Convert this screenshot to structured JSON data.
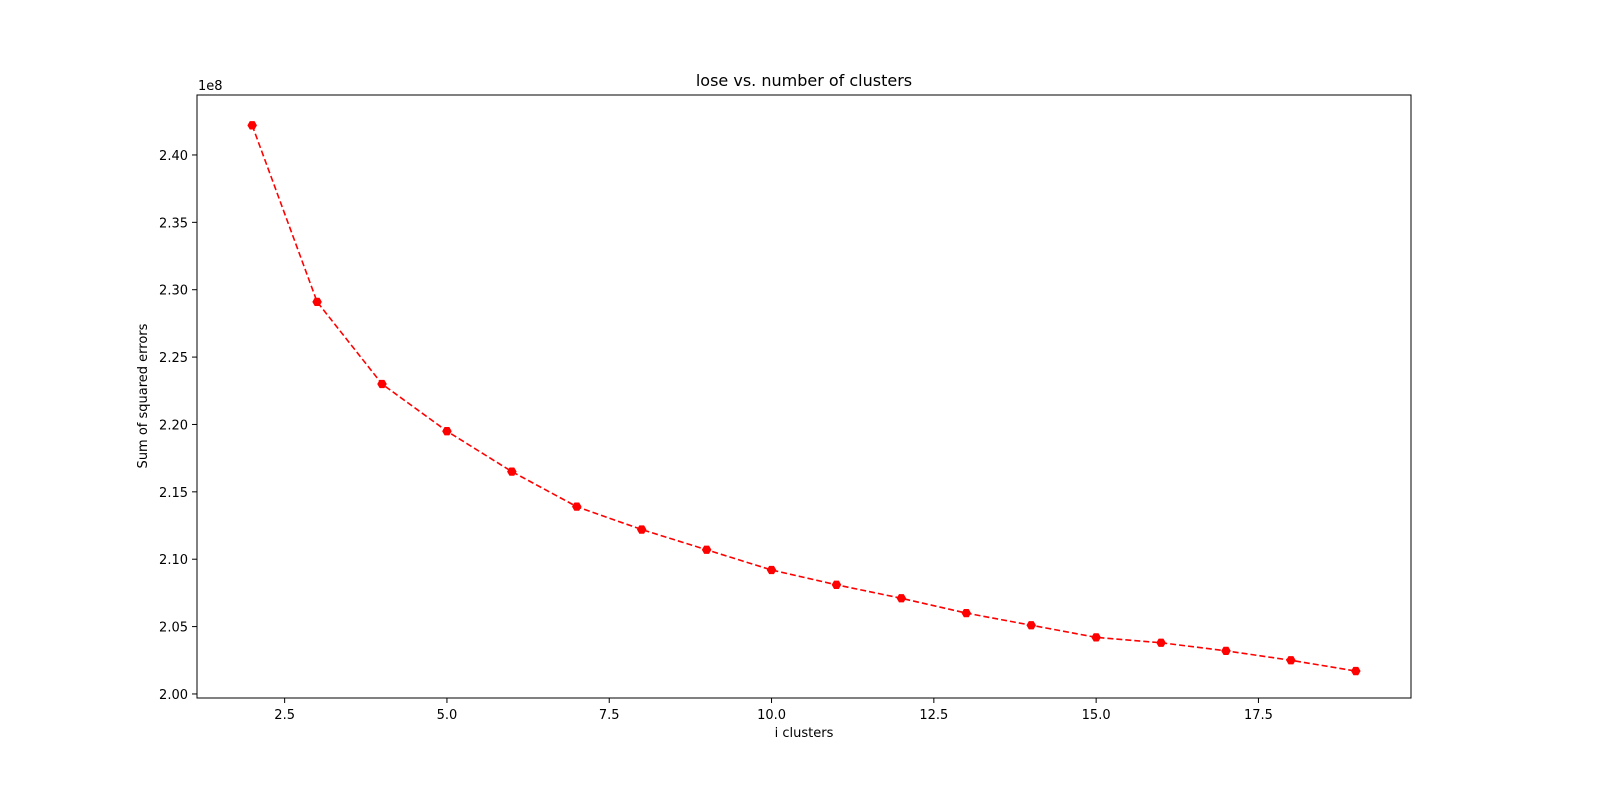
{
  "chart_data": {
    "type": "line",
    "title": "lose vs. number of clusters",
    "xlabel": "i clusters",
    "ylabel": "Sum of squared errors",
    "y_offset_label": "1e8",
    "xlim": [
      1.15,
      19.85
    ],
    "ylim": [
      1.997,
      2.4445
    ],
    "x_ticks": [
      2.5,
      5.0,
      7.5,
      10.0,
      12.5,
      15.0,
      17.5
    ],
    "x_tick_labels": [
      "2.5",
      "5.0",
      "7.5",
      "10.0",
      "12.5",
      "15.0",
      "17.5"
    ],
    "y_ticks": [
      2.0,
      2.05,
      2.1,
      2.15,
      2.2,
      2.25,
      2.3,
      2.35,
      2.4
    ],
    "y_tick_labels": [
      "2.00",
      "2.05",
      "2.10",
      "2.15",
      "2.20",
      "2.25",
      "2.30",
      "2.35",
      "2.40"
    ],
    "grid": false,
    "legend": "none",
    "series": [
      {
        "color": "#ff0000",
        "line_style": "dashed",
        "marker": "hexagon",
        "x": [
          2,
          3,
          4,
          5,
          6,
          7,
          8,
          9,
          10,
          11,
          12,
          13,
          14,
          15,
          16,
          17,
          18,
          19
        ],
        "y": [
          2.422,
          2.291,
          2.23,
          2.195,
          2.165,
          2.139,
          2.122,
          2.107,
          2.092,
          2.081,
          2.071,
          2.06,
          2.051,
          2.042,
          2.038,
          2.032,
          2.025,
          2.017
        ]
      }
    ]
  }
}
